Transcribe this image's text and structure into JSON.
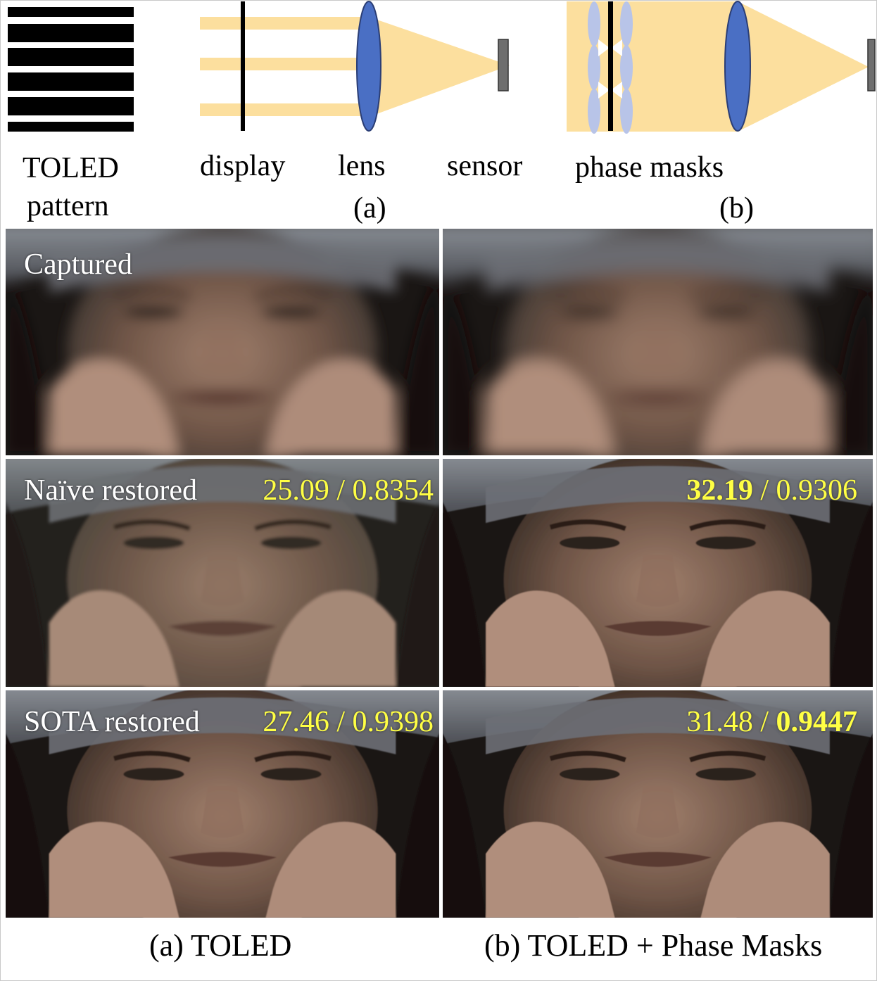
{
  "diagram": {
    "toled_label_line1": "TOLED",
    "toled_label_line2": "pattern",
    "display_label": "display",
    "lens_label": "lens",
    "sensor_label": "sensor",
    "phase_masks_label": "phase masks",
    "subfig_a": "(a)",
    "subfig_b": "(b)",
    "colors": {
      "beam": "#fcdf9e",
      "lens": "#4a6fc4",
      "sensor": "#6e6e6e",
      "mask": "#b8c4e8"
    }
  },
  "grid": {
    "rows": [
      {
        "left_label": "Captured",
        "left_metric": {
          "psnr": "",
          "ssim": "",
          "psnr_bold": false,
          "ssim_bold": false
        },
        "right_metric": {
          "psnr": "",
          "ssim": "",
          "psnr_bold": false,
          "ssim_bold": false
        }
      },
      {
        "left_label": "Naïve restored",
        "left_metric": {
          "psnr": "25.09",
          "ssim": "0.8354",
          "psnr_bold": false,
          "ssim_bold": false
        },
        "right_metric": {
          "psnr": "32.19",
          "ssim": "0.9306",
          "psnr_bold": true,
          "ssim_bold": false
        }
      },
      {
        "left_label": "SOTA restored",
        "left_metric": {
          "psnr": "27.46",
          "ssim": "0.9398",
          "psnr_bold": false,
          "ssim_bold": false
        },
        "right_metric": {
          "psnr": "31.48",
          "ssim": "0.9447",
          "psnr_bold": false,
          "ssim_bold": true
        }
      }
    ],
    "metric_separator": " / ",
    "metric_color": "#ffff44"
  },
  "captions": {
    "left": "(a) TOLED",
    "right": "(b) TOLED + Phase Masks"
  }
}
